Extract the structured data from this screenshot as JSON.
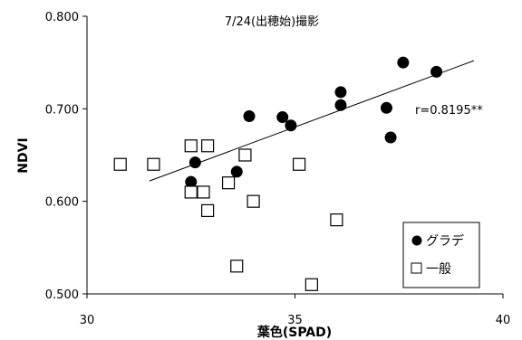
{
  "chart_data": {
    "type": "scatter",
    "title": "7/24(出穂始)撮影",
    "xlabel": "葉色(SPAD)",
    "ylabel": "NDVI",
    "xlim": [
      30,
      40
    ],
    "ylim": [
      0.5,
      0.8
    ],
    "xticks": [
      "30",
      "35",
      "40"
    ],
    "yticks": [
      "0.500",
      "0.600",
      "0.700",
      "0.800"
    ],
    "grid": false,
    "legend": "bottom-right",
    "annotation": "r=0.8195**",
    "trendline": {
      "x": [
        31.5,
        39.3
      ],
      "y": [
        0.622,
        0.752
      ]
    },
    "series": [
      {
        "name": "グラデ",
        "marker": "filled-circle",
        "color": "#000000",
        "points": [
          {
            "x": 32.5,
            "y": 0.621
          },
          {
            "x": 32.6,
            "y": 0.642
          },
          {
            "x": 33.6,
            "y": 0.632
          },
          {
            "x": 33.9,
            "y": 0.692
          },
          {
            "x": 34.7,
            "y": 0.691
          },
          {
            "x": 34.9,
            "y": 0.682
          },
          {
            "x": 36.1,
            "y": 0.718
          },
          {
            "x": 36.1,
            "y": 0.704
          },
          {
            "x": 37.2,
            "y": 0.701
          },
          {
            "x": 37.3,
            "y": 0.669
          },
          {
            "x": 37.6,
            "y": 0.75
          },
          {
            "x": 38.4,
            "y": 0.74
          }
        ]
      },
      {
        "name": "一般",
        "marker": "open-square",
        "color": "#000000",
        "points": [
          {
            "x": 30.8,
            "y": 0.64
          },
          {
            "x": 31.6,
            "y": 0.64
          },
          {
            "x": 32.5,
            "y": 0.66
          },
          {
            "x": 32.5,
            "y": 0.61
          },
          {
            "x": 32.8,
            "y": 0.61
          },
          {
            "x": 32.9,
            "y": 0.66
          },
          {
            "x": 32.9,
            "y": 0.59
          },
          {
            "x": 33.4,
            "y": 0.62
          },
          {
            "x": 33.6,
            "y": 0.53
          },
          {
            "x": 33.8,
            "y": 0.65
          },
          {
            "x": 34.0,
            "y": 0.6
          },
          {
            "x": 35.1,
            "y": 0.64
          },
          {
            "x": 35.4,
            "y": 0.51
          },
          {
            "x": 36.0,
            "y": 0.58
          }
        ]
      }
    ]
  }
}
